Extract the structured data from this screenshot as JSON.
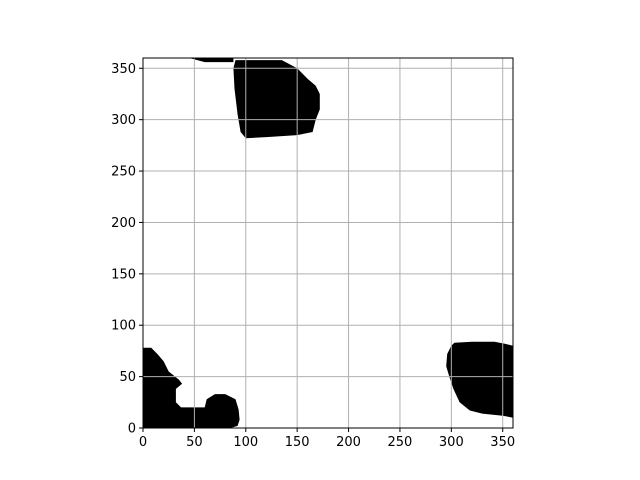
{
  "chart_data": {
    "type": "heatmap",
    "title": "",
    "xlabel": "",
    "ylabel": "",
    "xlim": [
      0,
      360
    ],
    "ylim": [
      0,
      360
    ],
    "xticks": [
      0,
      50,
      100,
      150,
      200,
      250,
      300,
      350
    ],
    "yticks": [
      0,
      50,
      100,
      150,
      200,
      250,
      300,
      350
    ],
    "x_tick_labels": [
      "0",
      "50",
      "100",
      "150",
      "200",
      "250",
      "300",
      "350"
    ],
    "y_tick_labels": [
      "0",
      "50",
      "100",
      "150",
      "200",
      "250",
      "300",
      "350"
    ],
    "grid": true,
    "colors": {
      "filled": "#000000",
      "empty": "#ffffff",
      "grid": "#b0b0b0"
    },
    "regions": [
      {
        "name": "top-blob",
        "polygon": [
          [
            90,
            358
          ],
          [
            135,
            358
          ],
          [
            150,
            350
          ],
          [
            160,
            340
          ],
          [
            168,
            333
          ],
          [
            172,
            325
          ],
          [
            172,
            310
          ],
          [
            168,
            300
          ],
          [
            165,
            288
          ],
          [
            150,
            285
          ],
          [
            120,
            283
          ],
          [
            100,
            282
          ],
          [
            95,
            288
          ],
          [
            92,
            305
          ],
          [
            89,
            330
          ],
          [
            88,
            350
          ]
        ]
      },
      {
        "name": "top-left-fragment",
        "polygon": [
          [
            22,
            360
          ],
          [
            45,
            360
          ],
          [
            60,
            356
          ],
          [
            88,
            356
          ],
          [
            88,
            360
          ]
        ]
      },
      {
        "name": "bottom-right-blob",
        "polygon": [
          [
            303,
            83
          ],
          [
            320,
            84
          ],
          [
            342,
            84
          ],
          [
            352,
            82
          ],
          [
            360,
            80
          ],
          [
            360,
            10
          ],
          [
            350,
            12
          ],
          [
            330,
            14
          ],
          [
            318,
            17
          ],
          [
            308,
            25
          ],
          [
            302,
            38
          ],
          [
            298,
            50
          ],
          [
            295,
            60
          ],
          [
            296,
            72
          ],
          [
            300,
            80
          ]
        ]
      },
      {
        "name": "bottom-left-blob",
        "polygon": [
          [
            0,
            78
          ],
          [
            8,
            78
          ],
          [
            14,
            72
          ],
          [
            20,
            65
          ],
          [
            25,
            55
          ],
          [
            35,
            47
          ],
          [
            38,
            43
          ],
          [
            32,
            38
          ],
          [
            32,
            25
          ],
          [
            37,
            20
          ],
          [
            60,
            20
          ],
          [
            62,
            28
          ],
          [
            70,
            33
          ],
          [
            80,
            33
          ],
          [
            90,
            28
          ],
          [
            93,
            18
          ],
          [
            94,
            8
          ],
          [
            92,
            2
          ],
          [
            85,
            0
          ],
          [
            0,
            0
          ]
        ]
      }
    ]
  }
}
